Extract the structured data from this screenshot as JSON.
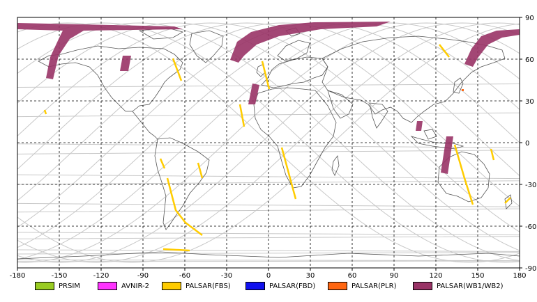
{
  "axes": {
    "x_ticks": [
      "-180",
      "-150",
      "-120",
      "-90",
      "-60",
      "-30",
      "0",
      "30",
      "60",
      "90",
      "120",
      "150",
      "180"
    ],
    "y_ticks": [
      "90",
      "60",
      "30",
      "0",
      "-30",
      "-60",
      "-90"
    ],
    "lon_range": [
      -180,
      180
    ],
    "lat_range": [
      -90,
      90
    ],
    "grid": "dashed"
  },
  "legend": [
    {
      "label": "PRSIM",
      "color": "#99cc22"
    },
    {
      "label": "AVNIR-2",
      "color": "#ff33ff"
    },
    {
      "label": "PALSAR(FBS)",
      "color": "#ffcc00"
    },
    {
      "label": "PALSAR(FBD)",
      "color": "#1111ee"
    },
    {
      "label": "PALSAR(PLR)",
      "color": "#ff6611"
    },
    {
      "label": "PALSAR(WB1/WB2)",
      "color": "#993366"
    }
  ]
}
